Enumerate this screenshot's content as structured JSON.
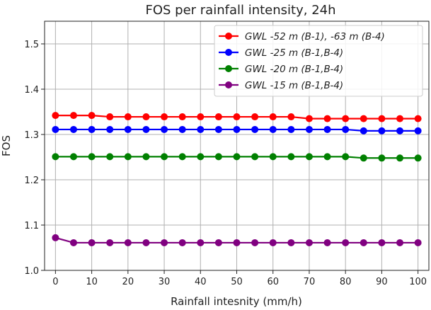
{
  "chart_data": {
    "type": "line",
    "title": "FOS per rainfall intensity, 24h",
    "xlabel": "Rainfall intesnity (mm/h)",
    "ylabel": "FOS",
    "xlim": [
      -3,
      103
    ],
    "ylim": [
      1.0,
      1.55
    ],
    "xticks": [
      0,
      10,
      20,
      30,
      40,
      50,
      60,
      70,
      80,
      90,
      100
    ],
    "yticks": [
      1.0,
      1.1,
      1.2,
      1.3,
      1.4,
      1.5
    ],
    "ytick_labels": [
      "1.0",
      "1.1",
      "1.2",
      "1.3",
      "1.4",
      "1.5"
    ],
    "grid": true,
    "legend_position": "top-right",
    "x": [
      0,
      5,
      10,
      15,
      20,
      25,
      30,
      35,
      40,
      45,
      50,
      55,
      60,
      65,
      70,
      75,
      80,
      85,
      90,
      95,
      100
    ],
    "series": [
      {
        "name": "GWL -52 m (B-1), -63 m (B-4)",
        "color": "#ff0000",
        "values": [
          1.342,
          1.342,
          1.342,
          1.339,
          1.339,
          1.339,
          1.339,
          1.339,
          1.339,
          1.339,
          1.339,
          1.339,
          1.339,
          1.339,
          1.335,
          1.335,
          1.335,
          1.335,
          1.335,
          1.335,
          1.335
        ]
      },
      {
        "name": "GWL -25 m (B-1,B-4)",
        "color": "#0000ff",
        "values": [
          1.311,
          1.311,
          1.311,
          1.311,
          1.311,
          1.311,
          1.311,
          1.311,
          1.311,
          1.311,
          1.311,
          1.311,
          1.311,
          1.311,
          1.311,
          1.311,
          1.311,
          1.308,
          1.308,
          1.308,
          1.308
        ]
      },
      {
        "name": "GWL -20 m (B-1,B-4)",
        "color": "#008000",
        "values": [
          1.251,
          1.251,
          1.251,
          1.251,
          1.251,
          1.251,
          1.251,
          1.251,
          1.251,
          1.251,
          1.251,
          1.251,
          1.251,
          1.251,
          1.251,
          1.251,
          1.251,
          1.248,
          1.248,
          1.248,
          1.248
        ]
      },
      {
        "name": "GWL -15 m (B-1,B-4)",
        "color": "#800080",
        "values": [
          1.072,
          1.061,
          1.061,
          1.061,
          1.061,
          1.061,
          1.061,
          1.061,
          1.061,
          1.061,
          1.061,
          1.061,
          1.061,
          1.061,
          1.061,
          1.061,
          1.061,
          1.061,
          1.061,
          1.061,
          1.061
        ]
      }
    ]
  }
}
